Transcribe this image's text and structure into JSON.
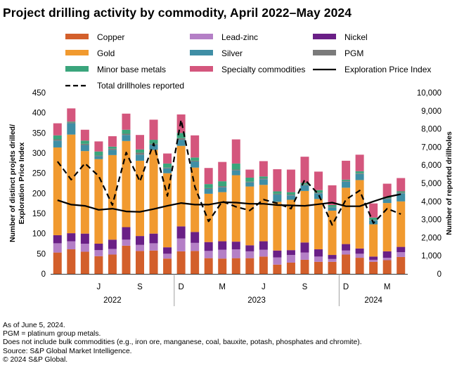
{
  "title": "Project drilling activity by commodity, April 2022–May 2024",
  "notes": [
    "As of June 5, 2024.",
    "PGM = platinum group metals.",
    "Does not include bulk commodities (e.g., iron ore, manganese, coal, bauxite, potash, phosphates and chromite).",
    "Source: S&P Global Market Intelligence.",
    "© 2024 S&P Global."
  ],
  "chart_data": {
    "type": "bar",
    "stacked": true,
    "ylabel": "Number of distinct projets drilled/ Exploration Price Index",
    "y2label": "Number of reported drillholes",
    "ylim": [
      0,
      450
    ],
    "y2lim": [
      0,
      10000
    ],
    "yticks": [
      "0",
      "50",
      "100",
      "150",
      "200",
      "250",
      "300",
      "350",
      "400",
      "450"
    ],
    "y2ticks": [
      "0",
      "1,000",
      "2,000",
      "3,000",
      "4,000",
      "5,000",
      "6,000",
      "7,000",
      "8,000",
      "9,000",
      "10,000"
    ],
    "grid": false,
    "legend_position": "top",
    "categories": [
      "Apr 2022",
      "May 2022",
      "Jun 2022",
      "Jul 2022",
      "Aug 2022",
      "Sep 2022",
      "Oct 2022",
      "Nov 2022",
      "Dec 2022",
      "Jan 2023",
      "Feb 2023",
      "Mar 2023",
      "Apr 2023",
      "May 2023",
      "Jun 2023",
      "Jul 2023",
      "Aug 2023",
      "Sep 2023",
      "Oct 2023",
      "Nov 2023",
      "Dec 2023",
      "Jan 2024",
      "Feb 2024",
      "Mar 2024",
      "Apr 2024",
      "May 2024"
    ],
    "month_ticks": [
      {
        "index": 3,
        "label": "J"
      },
      {
        "index": 6,
        "label": "S"
      },
      {
        "index": 9,
        "label": "D"
      },
      {
        "index": 12,
        "label": "M"
      },
      {
        "index": 15,
        "label": "J"
      },
      {
        "index": 18,
        "label": "S"
      },
      {
        "index": 21,
        "label": "D"
      },
      {
        "index": 24,
        "label": "M"
      }
    ],
    "year_groups": [
      {
        "label": "2022",
        "start": 0,
        "end": 8
      },
      {
        "label": "2023",
        "start": 9,
        "end": 20
      },
      {
        "label": "2024",
        "start": 21,
        "end": 25
      }
    ],
    "series": [
      {
        "name": "Copper",
        "color": "#d35f2b",
        "values": [
          53,
          61,
          55,
          44,
          48,
          70,
          57,
          58,
          38,
          56,
          57,
          39,
          38,
          39,
          39,
          43,
          23,
          28,
          35,
          30,
          30,
          48,
          40,
          30,
          34,
          42
        ]
      },
      {
        "name": "Lead-zinc",
        "color": "#b47fc6",
        "values": [
          23,
          20,
          20,
          15,
          14,
          15,
          15,
          18,
          12,
          32,
          20,
          18,
          22,
          22,
          17,
          17,
          18,
          19,
          18,
          13,
          7,
          10,
          10,
          5,
          6,
          12
        ]
      },
      {
        "name": "Nickel",
        "color": "#6a1f86",
        "values": [
          20,
          20,
          25,
          16,
          23,
          31,
          22,
          24,
          16,
          30,
          27,
          22,
          21,
          19,
          15,
          21,
          17,
          12,
          25,
          18,
          10,
          16,
          13,
          8,
          16,
          13
        ]
      },
      {
        "name": "Gold",
        "color": "#f19a2f",
        "values": [
          218,
          245,
          205,
          210,
          210,
          214,
          187,
          208,
          184,
          200,
          160,
          120,
          122,
          165,
          146,
          140,
          121,
          125,
          128,
          125,
          110,
          140,
          170,
          80,
          120,
          113
        ]
      },
      {
        "name": "Silver",
        "color": "#3f8ea5",
        "values": [
          17,
          28,
          15,
          7,
          13,
          15,
          15,
          13,
          12,
          15,
          15,
          12,
          12,
          12,
          10,
          14,
          18,
          11,
          14,
          14,
          8,
          15,
          15,
          10,
          10,
          20
        ]
      },
      {
        "name": "PGM",
        "color": "#7a7a7a",
        "values": [
          3,
          2,
          3,
          2,
          3,
          3,
          5,
          2,
          2,
          4,
          2,
          2,
          3,
          2,
          2,
          2,
          2,
          2,
          2,
          2,
          1,
          2,
          2,
          1,
          2,
          2
        ]
      },
      {
        "name": "Minor base metals",
        "color": "#3aa57c",
        "values": [
          10,
          2,
          8,
          10,
          5,
          10,
          8,
          10,
          10,
          13,
          8,
          10,
          12,
          15,
          10,
          5,
          6,
          6,
          4,
          6,
          5,
          3,
          5,
          6,
          3,
          3
        ]
      },
      {
        "name": "Specialty commodities",
        "color": "#d4567d",
        "values": [
          30,
          33,
          27,
          25,
          26,
          40,
          36,
          50,
          25,
          46,
          55,
          40,
          48,
          60,
          20,
          38,
          55,
          56,
          65,
          46,
          49,
          47,
          41,
          35,
          33,
          33
        ]
      }
    ],
    "lines": [
      {
        "name": "Exploration Price Index",
        "axis": "left",
        "style": "solid",
        "color": "#000000",
        "values": [
          183,
          172,
          169,
          159,
          162,
          155,
          154,
          161,
          169,
          176,
          172,
          172,
          178,
          177,
          174,
          174,
          171,
          170,
          169,
          173,
          177,
          168,
          168,
          180,
          191,
          198
        ]
      },
      {
        "name": "Total drillholes reported",
        "axis": "right",
        "style": "dashed",
        "color": "#000000",
        "values": [
          6200,
          5200,
          6100,
          5400,
          3800,
          6700,
          5100,
          7200,
          4300,
          8500,
          4800,
          2900,
          4000,
          3700,
          3500,
          4100,
          3900,
          3600,
          5200,
          4400,
          2700,
          4100,
          4600,
          2800,
          3600,
          3300
        ]
      }
    ]
  }
}
